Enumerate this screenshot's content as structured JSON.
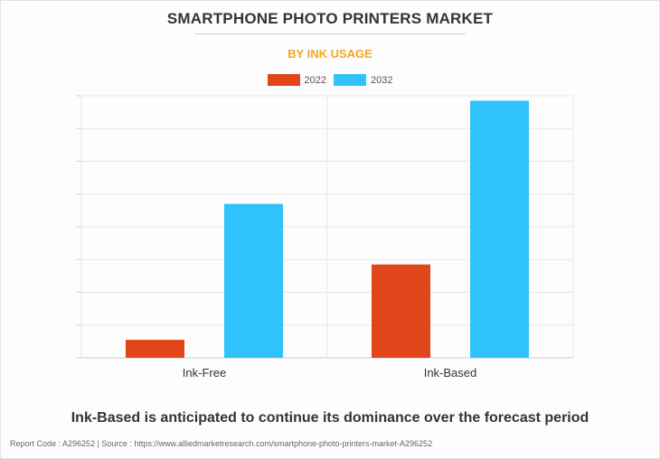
{
  "header": {
    "title": "SMARTPHONE PHOTO PRINTERS MARKET",
    "subtitle": "BY INK USAGE"
  },
  "colors": {
    "series_2022": "#e0461a",
    "series_2032": "#2ec4fb",
    "subtitle": "#f5a623",
    "grid": "#e6e6e6"
  },
  "chart_data": {
    "type": "bar",
    "categories": [
      "Ink-Free",
      "Ink-Based"
    ],
    "series": [
      {
        "name": "2022",
        "values": [
          5.5,
          28.5
        ]
      },
      {
        "name": "2032",
        "values": [
          47,
          78.5
        ]
      }
    ],
    "ylim": [
      0,
      80
    ],
    "y_grid_step": 10,
    "grid": true,
    "y_tick_labels_shown": false,
    "legend_position": "top-center",
    "title": "SMARTPHONE PHOTO PRINTERS MARKET",
    "subtitle": "BY INK USAGE"
  },
  "footer": {
    "note": "Ink-Based is anticipated to continue its dominance over the forecast period",
    "source": "Report Code : A296252  |  Source : https://www.alliedmarketresearch.com/smartphone-photo-printers-market-A296252"
  }
}
